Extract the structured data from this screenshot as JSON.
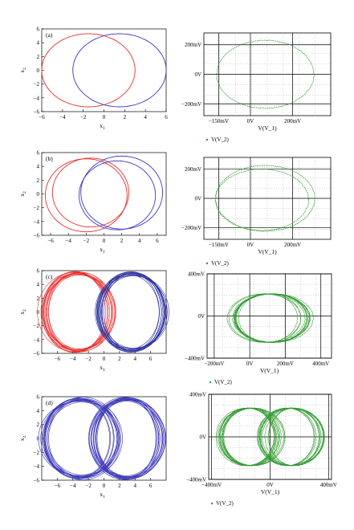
{
  "chart_data": [
    {
      "id": "a-sim",
      "type": "line",
      "panel_label": "(a)",
      "xlabel": "x",
      "xlabel_sub": "1",
      "ylabel": "x",
      "ylabel_sub": "2",
      "xlim": [
        -6,
        6
      ],
      "ylim": [
        -6,
        6
      ],
      "xticks": [
        "−6",
        "−4",
        "−2",
        "0",
        "2",
        "4",
        "6"
      ],
      "yticks": [
        "−6",
        "−4",
        "−2",
        "0",
        "2",
        "4",
        "6"
      ],
      "series": [
        {
          "color": "#e8302f",
          "loops": [
            {
              "cx": -1.5,
              "cy": 0,
              "rx": 4.5,
              "ry": 5.3
            }
          ],
          "pattern": "clean"
        },
        {
          "color": "#3a36c8",
          "loops": [
            {
              "cx": 1.5,
              "cy": 0,
              "rx": 4.5,
              "ry": 5.3
            }
          ],
          "pattern": "clean"
        }
      ]
    },
    {
      "id": "a-circuit",
      "type": "scatter",
      "xlabel": "V(V_1)",
      "legend": "V(V_2)",
      "xticks": [
        "−150mV",
        "0V",
        "200mV"
      ],
      "yticks": [
        "200mV",
        "0V",
        "−200mV"
      ],
      "color": "#2e9a2e",
      "series": [
        {
          "loops": [
            {
              "cx": 70,
              "cy": 0,
              "rx": 230,
              "ry": 230
            }
          ],
          "pattern": "clean"
        }
      ]
    },
    {
      "id": "b-sim",
      "type": "line",
      "panel_label": "(b)",
      "xlabel": "x",
      "xlabel_sub": "1",
      "ylabel": "x",
      "ylabel_sub": "2",
      "xlim": [
        -7,
        7
      ],
      "ylim": [
        -6,
        6
      ],
      "xticks": [
        "−6",
        "−4",
        "−2",
        "0",
        "2",
        "4",
        "6"
      ],
      "yticks": [
        "−6",
        "−4",
        "−2",
        "0",
        "2",
        "4",
        "6"
      ],
      "series": [
        {
          "color": "#e8302f",
          "loops": [
            {
              "cx": -2.0,
              "cy": -0.2,
              "rx": 4.6,
              "ry": 5.3
            },
            {
              "cx": -1.5,
              "cy": 0.2,
              "rx": 4.3,
              "ry": 5.0
            }
          ],
          "pattern": "double"
        },
        {
          "color": "#3a36c8",
          "loops": [
            {
              "cx": 2.0,
              "cy": 0.2,
              "rx": 4.6,
              "ry": 5.3
            },
            {
              "cx": 1.5,
              "cy": -0.2,
              "rx": 4.3,
              "ry": 5.0
            }
          ],
          "pattern": "double"
        }
      ]
    },
    {
      "id": "b-circuit",
      "type": "scatter",
      "xlabel": "V(V_1)",
      "legend": "V(V_2)",
      "xticks": [
        "−150mV",
        "0V",
        "200mV"
      ],
      "yticks": [
        "200mV",
        "0V",
        "−200mV"
      ],
      "color": "#2e9a2e",
      "series": [
        {
          "loops": [
            {
              "cx": 70,
              "cy": 0,
              "rx": 235,
              "ry": 225
            },
            {
              "cx": 55,
              "cy": -10,
              "rx": 220,
              "ry": 210
            }
          ],
          "pattern": "double"
        }
      ]
    },
    {
      "id": "c-sim",
      "type": "line",
      "panel_label": "(c)",
      "xlabel": "x",
      "xlabel_sub": "1",
      "ylabel": "x",
      "ylabel_sub": "2",
      "xlim": [
        -8,
        8
      ],
      "ylim": [
        -6,
        6
      ],
      "xticks": [
        "−6",
        "−4",
        "−2",
        "0",
        "2",
        "4",
        "6"
      ],
      "yticks": [
        "−6",
        "−4",
        "−2",
        "0",
        "2",
        "4",
        "6"
      ],
      "series": [
        {
          "color": "#e8302f",
          "loops": [
            {
              "cx": -3.5,
              "cy": 0,
              "rx": 4.3,
              "ry": 5.6
            }
          ],
          "pattern": "dense"
        },
        {
          "color": "#2b2f9e",
          "loops": [
            {
              "cx": 3.5,
              "cy": 0,
              "rx": 4.3,
              "ry": 5.6
            }
          ],
          "pattern": "dense"
        }
      ]
    },
    {
      "id": "c-circuit",
      "type": "scatter",
      "xlabel": "V(V_1)",
      "legend": "V(V_2)",
      "xticks": [
        "−200mV",
        "0V",
        "200mV",
        "400mV"
      ],
      "yticks": [
        "400mV",
        "0V",
        "−400mV"
      ],
      "color": "#2e9a2e",
      "series": [
        {
          "loops": [
            {
              "cx": 110,
              "cy": -20,
              "rx": 200,
              "ry": 230
            }
          ],
          "pattern": "dense"
        }
      ]
    },
    {
      "id": "d-sim",
      "type": "line",
      "panel_label": "(d)",
      "xlabel": "x",
      "xlabel_sub": "1",
      "ylabel": "x",
      "ylabel_sub": "2",
      "xlim": [
        -8,
        8
      ],
      "ylim": [
        -6,
        6
      ],
      "xticks": [
        "−6",
        "−4",
        "−2",
        "0",
        "2",
        "4",
        "6"
      ],
      "yticks": [
        "−6",
        "−4",
        "−2",
        "0",
        "2",
        "4",
        "6"
      ],
      "series": [
        {
          "color": "#3a36b8",
          "loops": [
            {
              "cx": -3.0,
              "cy": 0,
              "rx": 4.5,
              "ry": 5.6
            },
            {
              "cx": 3.0,
              "cy": 0,
              "rx": 4.5,
              "ry": 5.6
            }
          ],
          "pattern": "dense"
        }
      ]
    },
    {
      "id": "d-circuit",
      "type": "scatter",
      "xlabel": "V(V_1)",
      "legend": "V(V_2)",
      "xticks": [
        "−400mV",
        "0V",
        "400mV"
      ],
      "yticks": [
        "400mV",
        "0V",
        "−400mV"
      ],
      "color": "#2e9a2e",
      "series": [
        {
          "loops": [
            {
              "cx": -140,
              "cy": 0,
              "rx": 200,
              "ry": 270
            },
            {
              "cx": 140,
              "cy": 0,
              "rx": 200,
              "ry": 270
            }
          ],
          "pattern": "dense"
        }
      ]
    }
  ]
}
